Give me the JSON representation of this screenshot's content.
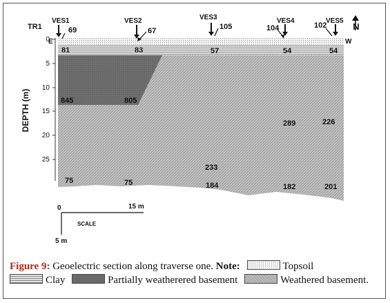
{
  "traverse": "TR1",
  "orientation": {
    "east": "E",
    "west": "W",
    "north": "N"
  },
  "axis": {
    "label": "DEPTH (m)",
    "ticks": [
      "0",
      "5",
      "10",
      "15",
      "20",
      "25"
    ]
  },
  "stations": [
    {
      "name": "VES1",
      "elevation": "69"
    },
    {
      "name": "VES2",
      "elevation": "67"
    },
    {
      "name": "VES3",
      "elevation": "105"
    },
    {
      "name": "VES4",
      "elevation": "104"
    },
    {
      "name": "VES5",
      "elevation": "102"
    }
  ],
  "resistivity_labels": {
    "topsoil": [
      "81",
      "83",
      "57",
      "54",
      "54"
    ],
    "partially_weathered": [
      "845",
      "805"
    ],
    "weathered_upper": [
      "289",
      "226"
    ],
    "weathered_mid": [
      "233"
    ],
    "base": [
      "75",
      "75",
      "184",
      "182",
      "201"
    ]
  },
  "scale": {
    "origin": "0",
    "horizontal": "15 m",
    "vertical": "5 m",
    "label": "SCALE"
  },
  "caption": {
    "figure_label": "Figure 9:",
    "text": "Geoelectric section along traverse one.",
    "note_label": "Note:",
    "legend": [
      {
        "key": "topsoil",
        "label": "Topsoil"
      },
      {
        "key": "clay",
        "label": "Clay"
      },
      {
        "key": "partially_weathered",
        "label": "Partially weatherered basement"
      },
      {
        "key": "weathered",
        "label": "Weathered basement."
      }
    ]
  },
  "colors": {
    "partially_weathered": "#6a6a6a",
    "weathered": "#b4b4b4",
    "caption_label": "#b02a1a"
  }
}
